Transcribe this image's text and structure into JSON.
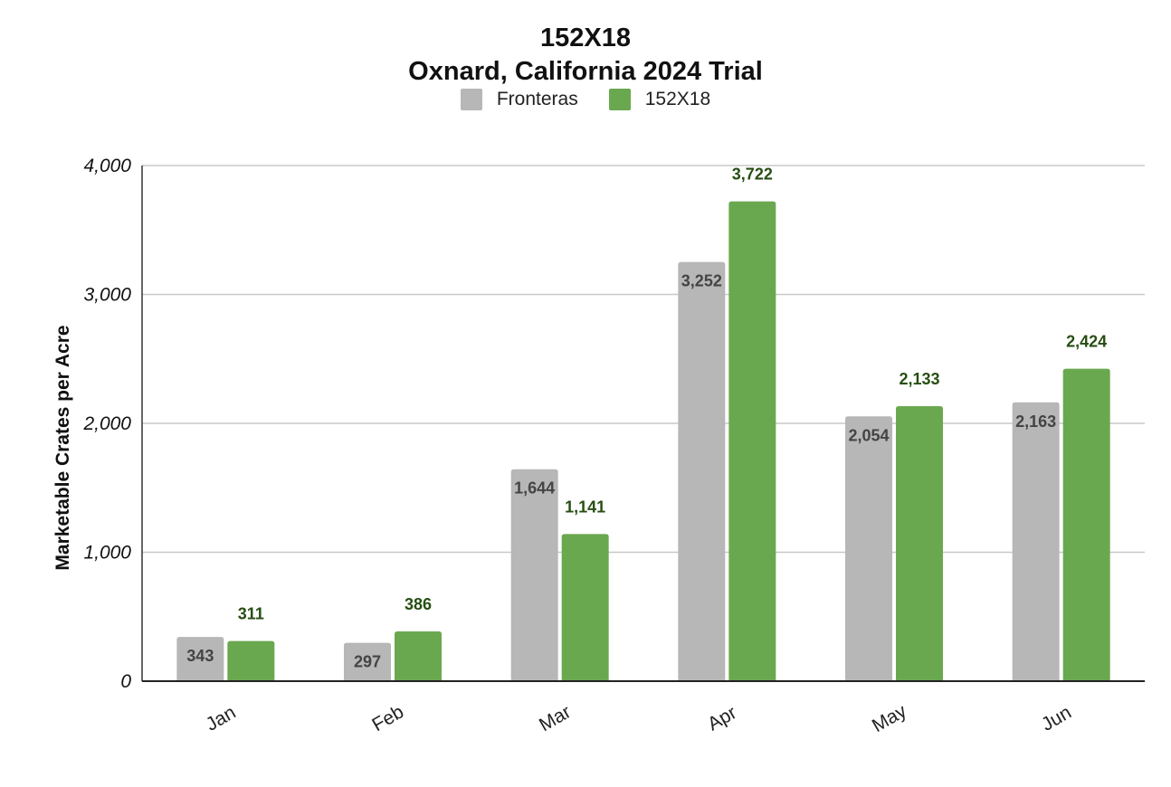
{
  "chart_data": {
    "type": "bar",
    "title": "152X18",
    "subtitle": "Oxnard, California 2024 Trial",
    "xlabel": "",
    "ylabel": "Marketable Crates per Acre",
    "categories": [
      "Jan",
      "Feb",
      "Mar",
      "Apr",
      "May",
      "Jun"
    ],
    "series": [
      {
        "name": "Fronteras",
        "color": "#b7b7b7",
        "label_color": "#444444",
        "values": [
          343,
          297,
          1644,
          3252,
          2054,
          2163
        ],
        "labels": [
          "343",
          "297",
          "1,644",
          "3,252",
          "2,054",
          "2,163"
        ]
      },
      {
        "name": "152X18",
        "color": "#6aa84f",
        "label_color": "#274e13",
        "values": [
          311,
          386,
          1141,
          3722,
          2133,
          2424
        ],
        "labels": [
          "311",
          "386",
          "1,141",
          "3,722",
          "2,133",
          "2,424"
        ]
      }
    ],
    "ylim": [
      0,
      4000
    ],
    "yticks": [
      0,
      1000,
      2000,
      3000,
      4000
    ],
    "ytick_labels": [
      "0",
      "1,000",
      "2,000",
      "3,000",
      "4,000"
    ],
    "grid": true,
    "legend_position": "top"
  }
}
